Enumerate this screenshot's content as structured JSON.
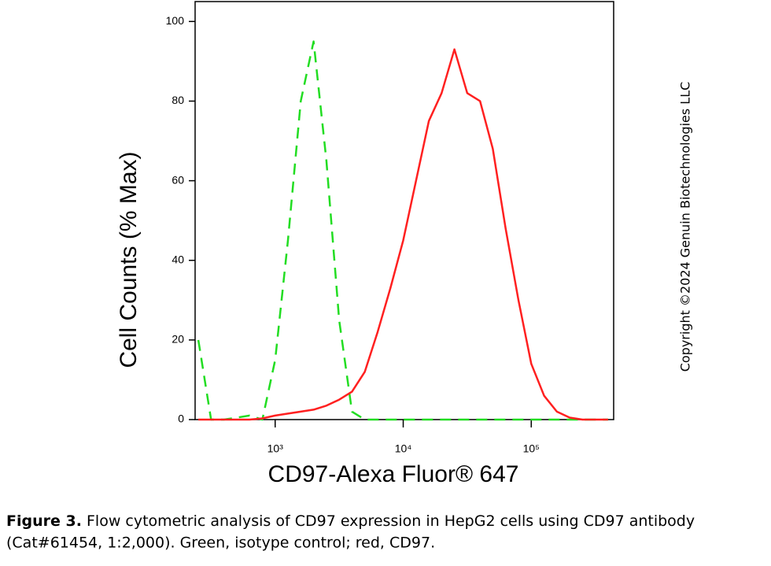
{
  "chart_data": {
    "type": "line",
    "xlabel": "CD97-Alexa Fluor® 647",
    "ylabel": "Cell Counts (% Max)",
    "x": [
      251,
      316,
      398,
      501,
      631,
      794,
      1000,
      1259,
      1585,
      1995,
      2512,
      3162,
      3981,
      5012,
      6310,
      7943,
      10000,
      12589,
      15849,
      19953,
      25119,
      31623,
      39811,
      50119,
      63096,
      79433,
      100000,
      125893,
      158489,
      199526,
      251189,
      316228,
      398107
    ],
    "series": [
      {
        "color": "#22dd22",
        "line_style": "dashed",
        "values": [
          20,
          0,
          0,
          0.5,
          1,
          0,
          15,
          45,
          80,
          95,
          65,
          25,
          2,
          0,
          0,
          0,
          0,
          0,
          0,
          0,
          0,
          0,
          0,
          0,
          0,
          0,
          0,
          0,
          0,
          0,
          0,
          0,
          0
        ]
      },
      {
        "color": "#ff2020",
        "line_style": "solid",
        "values": [
          0,
          0,
          0,
          0,
          0,
          0.3,
          1,
          1.5,
          2,
          2.5,
          3.5,
          5,
          7,
          12,
          22,
          33,
          45,
          60,
          75,
          82,
          93,
          82,
          80,
          68,
          48,
          30,
          14,
          6,
          2,
          0.5,
          0,
          0,
          0
        ]
      }
    ],
    "xscale": "log",
    "xlim": [
      237,
      440000
    ],
    "xticks": [
      {
        "value": 1000,
        "label": "10³"
      },
      {
        "value": 10000,
        "label": "10⁴"
      },
      {
        "value": 100000,
        "label": "10⁵"
      }
    ],
    "ylim": [
      0,
      105
    ],
    "yticks": [
      0,
      20,
      40,
      60,
      80,
      100
    ],
    "grid": false
  },
  "copyright": "Copyright ©2024 Genuin Biotechnologies LLC",
  "caption": {
    "label": "Figure 3.",
    "line1": "Flow cytometric analysis of CD97 expression in HepG2 cells using CD97 antibody",
    "line2": "(Cat#61454, 1:2,000). Green, isotype control; red, CD97."
  }
}
